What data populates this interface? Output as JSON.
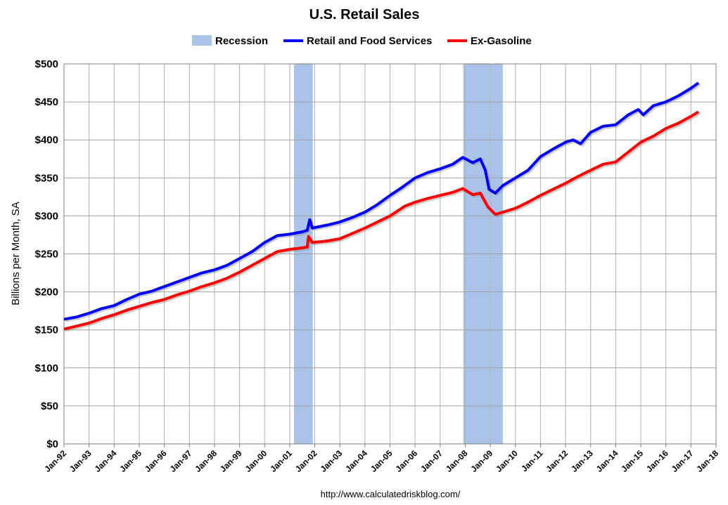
{
  "chart_data": {
    "type": "line",
    "title": "U.S. Retail Sales",
    "xlabel": "",
    "ylabel": "Billions per Month, SA",
    "ylim": [
      0,
      500
    ],
    "xlim": [
      1992,
      2018
    ],
    "yticks": [
      "$0",
      "$50",
      "$100",
      "$150",
      "$200",
      "$250",
      "$300",
      "$350",
      "$400",
      "$450",
      "$500"
    ],
    "ytick_values": [
      0,
      50,
      100,
      150,
      200,
      250,
      300,
      350,
      400,
      450,
      500
    ],
    "xticks": [
      "Jan-92",
      "Jan-93",
      "Jan-94",
      "Jan-95",
      "Jan-96",
      "Jan-97",
      "Jan-98",
      "Jan-99",
      "Jan-00",
      "Jan-01",
      "Jan-02",
      "Jan-03",
      "Jan-04",
      "Jan-05",
      "Jan-06",
      "Jan-07",
      "Jan-08",
      "Jan-09",
      "Jan-10",
      "Jan-11",
      "Jan-12",
      "Jan-13",
      "Jan-14",
      "Jan-15",
      "Jan-16",
      "Jan-17",
      "Jan-18"
    ],
    "grid": true,
    "legend_position": "top",
    "legend": [
      "Recession",
      "Retail and Food Services",
      "Ex-Gasoline"
    ],
    "recessions": [
      [
        2001.17,
        2001.92
      ],
      [
        2007.92,
        2009.5
      ]
    ],
    "series": [
      {
        "name": "Retail and Food Services",
        "color": "#0000ff",
        "x": [
          1992,
          1992.5,
          1993,
          1993.5,
          1994,
          1994.5,
          1995,
          1995.5,
          1996,
          1996.5,
          1997,
          1997.5,
          1998,
          1998.5,
          1999,
          1999.5,
          2000,
          2000.5,
          2001,
          2001.5,
          2001.7,
          2001.8,
          2001.9,
          2002.5,
          2003,
          2003.5,
          2004,
          2004.5,
          2005,
          2005.5,
          2006,
          2006.5,
          2007,
          2007.5,
          2007.9,
          2008.3,
          2008.6,
          2008.8,
          2008.95,
          2009.2,
          2009.5,
          2010,
          2010.5,
          2011,
          2011.5,
          2012,
          2012.3,
          2012.6,
          2013,
          2013.5,
          2014,
          2014.5,
          2014.9,
          2015.1,
          2015.5,
          2016,
          2016.5,
          2017,
          2017.3
        ],
        "values": [
          164,
          167,
          172,
          178,
          182,
          190,
          197,
          201,
          207,
          213,
          219,
          225,
          229,
          235,
          244,
          253,
          265,
          274,
          276,
          279,
          281,
          295,
          284,
          288,
          292,
          298,
          305,
          315,
          327,
          338,
          350,
          357,
          362,
          368,
          377,
          370,
          375,
          360,
          335,
          330,
          340,
          350,
          360,
          378,
          388,
          397,
          400,
          395,
          410,
          418,
          420,
          433,
          440,
          433,
          445,
          450,
          458,
          468,
          475
        ]
      },
      {
        "name": "Ex-Gasoline",
        "color": "#ff0000",
        "x": [
          1992,
          1992.5,
          1993,
          1993.5,
          1994,
          1994.5,
          1995,
          1995.5,
          1996,
          1996.5,
          1997,
          1997.5,
          1998,
          1998.5,
          1999,
          1999.5,
          2000,
          2000.5,
          2001,
          2001.5,
          2001.7,
          2001.75,
          2001.9,
          2002.5,
          2003,
          2003.5,
          2004,
          2004.5,
          2005,
          2005.6,
          2006,
          2006.5,
          2007,
          2007.5,
          2007.9,
          2008.3,
          2008.6,
          2008.9,
          2009.2,
          2009.5,
          2010,
          2010.5,
          2011,
          2011.5,
          2012,
          2012.5,
          2013,
          2013.5,
          2014,
          2014.5,
          2015,
          2015.5,
          2016,
          2016.5,
          2017,
          2017.3
        ],
        "values": [
          151,
          155,
          159,
          165,
          170,
          176,
          181,
          186,
          190,
          196,
          201,
          207,
          212,
          218,
          226,
          235,
          244,
          253,
          256,
          258,
          259,
          273,
          265,
          267,
          270,
          277,
          284,
          292,
          300,
          313,
          318,
          323,
          327,
          331,
          336,
          328,
          330,
          312,
          302,
          305,
          310,
          318,
          327,
          335,
          343,
          352,
          360,
          368,
          371,
          384,
          397,
          405,
          415,
          422,
          431,
          437
        ]
      }
    ],
    "source": "http://www.calculatedriskblog.com/"
  }
}
